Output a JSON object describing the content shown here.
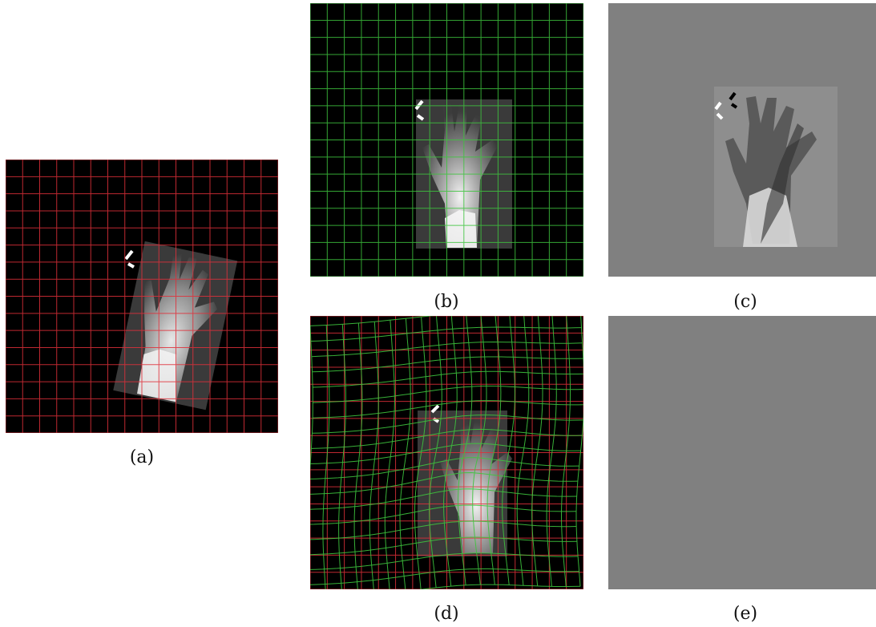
{
  "panels": [
    {
      "id": "a",
      "caption": "(a)",
      "content": "x-ray-hand-rotated",
      "grid_color": "#e0303a"
    },
    {
      "id": "b",
      "caption": "(b)",
      "content": "x-ray-hand-upright",
      "grid_color": "#3ec43e"
    },
    {
      "id": "c",
      "caption": "(c)",
      "content": "difference-image"
    },
    {
      "id": "d",
      "caption": "(d)",
      "content": "x-ray-hand-with-deformed-grid",
      "grid_colors": [
        "#e0303a",
        "#3ec43e"
      ]
    },
    {
      "id": "e",
      "caption": "(e)",
      "content": "uniform-gray-difference"
    }
  ],
  "colors": {
    "background_gray": "#808080",
    "red_grid": "#e0303a",
    "green_grid": "#3ec43e"
  }
}
